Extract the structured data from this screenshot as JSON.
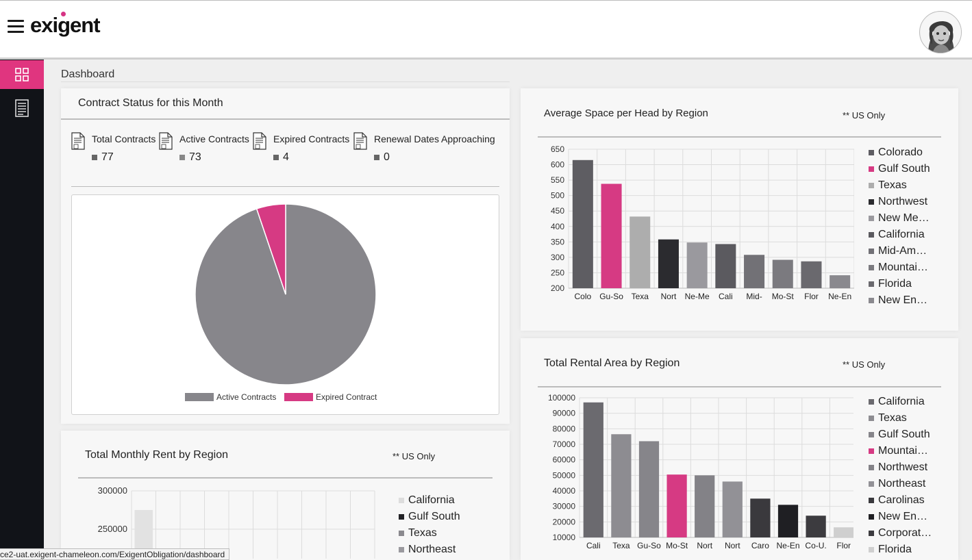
{
  "app": {
    "logo": "exigent"
  },
  "breadcrumb": "Dashboard",
  "status_url": "ce2-uat.exigent-chameleon.com/ExigentObligation/dashboard",
  "colors": {
    "accent": "#e0357f",
    "sidebar": "#111318"
  },
  "contract_card": {
    "title": "Contract Status for this Month",
    "stats": [
      {
        "label": "Total Contracts",
        "value": "77"
      },
      {
        "label": "Active Contracts",
        "value": "73"
      },
      {
        "label": "Expired Contracts",
        "value": "4"
      },
      {
        "label": "Renewal Dates Approaching",
        "value": "0"
      }
    ],
    "pie_legend": [
      {
        "label": "Active Contracts",
        "color": "#87868b"
      },
      {
        "label": "Expired Contract",
        "color": "#d63a83"
      }
    ]
  },
  "space_card": {
    "title": "Average Space per Head by Region",
    "note": "** US Only"
  },
  "rental_card": {
    "title": "Total Rental Area by Region",
    "note": "** US Only"
  },
  "rent_card": {
    "title": "Total Monthly Rent by Region",
    "note": "** US Only"
  },
  "chart_data": [
    {
      "type": "pie",
      "labels": [
        "Active Contracts",
        "Expired Contract"
      ],
      "values": [
        73,
        4
      ],
      "colors": [
        "#87868b",
        "#d63a83"
      ]
    },
    {
      "type": "bar",
      "categories": [
        "Colo",
        "Gu-So",
        "Texa",
        "Nort",
        "Ne-Me",
        "Cali",
        "Mid-",
        "Mo-St",
        "Flor",
        "Ne-En"
      ],
      "values": [
        615,
        538,
        432,
        358,
        348,
        343,
        308,
        292,
        287,
        242
      ],
      "colors": [
        "#5e5d62",
        "#d63a83",
        "#adadad",
        "#2b2b2f",
        "#9a999e",
        "#5b5a5f",
        "#727176",
        "#7b7a7f",
        "#6a696e",
        "#8a898e"
      ],
      "legend": [
        "Colorado",
        "Gulf South",
        "Texas",
        "Northwest",
        "New Me…",
        "California",
        "Mid-Am…",
        "Mountai…",
        "Florida",
        "New En…"
      ],
      "yticks": [
        "650",
        "600",
        "550",
        "500",
        "450",
        "400",
        "350",
        "300",
        "250",
        "200"
      ],
      "ylim": [
        200,
        650
      ]
    },
    {
      "type": "bar",
      "categories": [
        "Cali",
        "Texa",
        "Gu-So",
        "Mo-St",
        "Nort",
        "Nort",
        "Caro",
        "Ne-En",
        "Co-U.",
        "Flor"
      ],
      "values": [
        97000,
        76500,
        72000,
        50500,
        50000,
        46000,
        35000,
        31000,
        24000,
        16500
      ],
      "colors": [
        "#6b6a6f",
        "#8d8c91",
        "#86858a",
        "#d63a83",
        "#838287",
        "#929196",
        "#3a393d",
        "#1f1f23",
        "#3c3b3f",
        "#cfcfcf"
      ],
      "legend": [
        "California",
        "Texas",
        "Gulf South",
        "Mountai…",
        "Northwest",
        "Northeast",
        "Carolinas",
        "New En…",
        "Corporat…",
        "Florida"
      ],
      "yticks": [
        "100000",
        "90000",
        "80000",
        "70000",
        "60000",
        "50000",
        "40000",
        "30000",
        "20000",
        "10000"
      ],
      "ylim": [
        10000,
        100000
      ]
    },
    {
      "type": "bar",
      "categories": [
        "California"
      ],
      "values": [
        275000
      ],
      "colors": [
        "#e2e2e2"
      ],
      "legend": [
        "California",
        "Gulf South",
        "Texas",
        "Northeast"
      ],
      "legend_colors": [
        "#dddddd",
        "#222226",
        "#8a898e",
        "#9a999e"
      ],
      "yticks": [
        "300000",
        "250000"
      ],
      "ylim": [
        200000,
        300000
      ]
    }
  ]
}
